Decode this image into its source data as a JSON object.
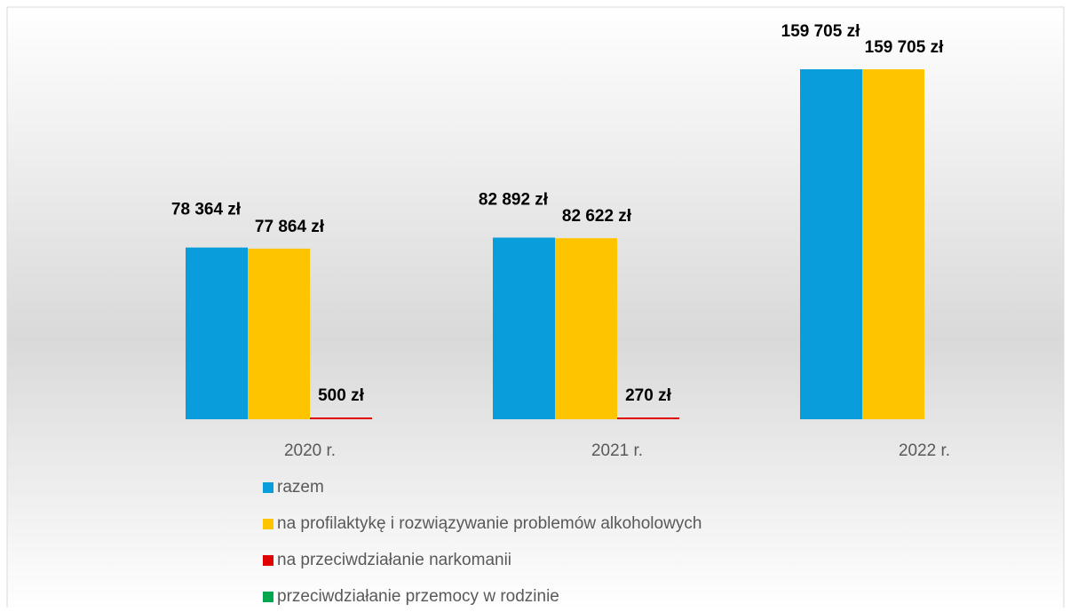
{
  "chart_data": {
    "type": "bar",
    "categories": [
      "2020 r.",
      "2021 r.",
      "2022 r."
    ],
    "series": [
      {
        "name": "razem",
        "color": "#0a9ddb",
        "values": [
          78364,
          82892,
          159705
        ],
        "value_labels": [
          "78 364 zł",
          "82 892 zł",
          "159 705 zł"
        ]
      },
      {
        "name": "na profilaktykę i rozwiązywanie problemów alkoholowych",
        "color": "#ffc400",
        "values": [
          77864,
          82622,
          159705
        ],
        "value_labels": [
          "77 864 zł",
          "82 622 zł",
          "159 705 zł"
        ]
      },
      {
        "name": "na przeciwdziałanie narkomanii",
        "color": "#e00000",
        "values": [
          500,
          270,
          null
        ],
        "value_labels": [
          "500 zł",
          "270 zł",
          null
        ]
      },
      {
        "name": "przeciwdziałanie przemocy w rodzinie",
        "color": "#00a650",
        "values": [
          null,
          null,
          null
        ]
      }
    ],
    "legend": "bottom"
  }
}
